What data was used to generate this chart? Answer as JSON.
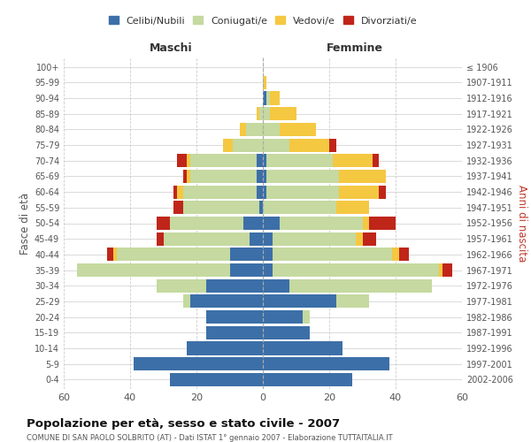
{
  "age_groups": [
    "0-4",
    "5-9",
    "10-14",
    "15-19",
    "20-24",
    "25-29",
    "30-34",
    "35-39",
    "40-44",
    "45-49",
    "50-54",
    "55-59",
    "60-64",
    "65-69",
    "70-74",
    "75-79",
    "80-84",
    "85-89",
    "90-94",
    "95-99",
    "100+"
  ],
  "birth_years": [
    "2002-2006",
    "1997-2001",
    "1992-1996",
    "1987-1991",
    "1982-1986",
    "1977-1981",
    "1972-1976",
    "1967-1971",
    "1962-1966",
    "1957-1961",
    "1952-1956",
    "1947-1951",
    "1942-1946",
    "1937-1941",
    "1932-1936",
    "1927-1931",
    "1922-1926",
    "1917-1921",
    "1912-1916",
    "1907-1911",
    "≤ 1906"
  ],
  "colors": {
    "celibi": "#3c6fa8",
    "coniugati": "#c5d9a0",
    "vedovi": "#f5c842",
    "divorziati": "#c0251a"
  },
  "maschi": {
    "celibi": [
      28,
      39,
      23,
      17,
      17,
      22,
      17,
      10,
      10,
      4,
      6,
      1,
      2,
      2,
      2,
      0,
      0,
      0,
      0,
      0,
      0
    ],
    "coniugati": [
      0,
      0,
      0,
      0,
      0,
      2,
      15,
      46,
      34,
      26,
      22,
      23,
      22,
      20,
      20,
      9,
      5,
      1,
      0,
      0,
      0
    ],
    "vedovi": [
      0,
      0,
      0,
      0,
      0,
      0,
      0,
      0,
      1,
      0,
      0,
      0,
      2,
      1,
      1,
      3,
      2,
      1,
      0,
      0,
      0
    ],
    "divorziati": [
      0,
      0,
      0,
      0,
      0,
      0,
      0,
      0,
      2,
      2,
      4,
      3,
      1,
      1,
      3,
      0,
      0,
      0,
      0,
      0,
      0
    ]
  },
  "femmine": {
    "celibi": [
      27,
      38,
      24,
      14,
      12,
      22,
      8,
      3,
      3,
      3,
      5,
      0,
      1,
      1,
      1,
      0,
      0,
      0,
      1,
      0,
      0
    ],
    "coniugati": [
      0,
      0,
      0,
      0,
      2,
      10,
      43,
      50,
      36,
      25,
      25,
      22,
      22,
      22,
      20,
      8,
      5,
      2,
      1,
      0,
      0
    ],
    "vedovi": [
      0,
      0,
      0,
      0,
      0,
      0,
      0,
      1,
      2,
      2,
      2,
      10,
      12,
      14,
      12,
      12,
      11,
      8,
      3,
      1,
      0
    ],
    "divorziati": [
      0,
      0,
      0,
      0,
      0,
      0,
      0,
      3,
      3,
      4,
      8,
      0,
      2,
      0,
      2,
      2,
      0,
      0,
      0,
      0,
      0
    ]
  },
  "title": "Popolazione per età, sesso e stato civile - 2007",
  "subtitle": "COMUNE DI SAN PAOLO SOLBRITO (AT) - Dati ISTAT 1° gennaio 2007 - Elaborazione TUTTAITALIA.IT",
  "xlabel_left": "Maschi",
  "xlabel_right": "Femmine",
  "ylabel_left": "Fasce di età",
  "ylabel_right": "Anni di nascita",
  "xlim": 60,
  "legend_labels": [
    "Celibi/Nubili",
    "Coniugati/e",
    "Vedovi/e",
    "Divorziati/e"
  ],
  "bg_color": "#ffffff",
  "grid_color": "#cccccc"
}
